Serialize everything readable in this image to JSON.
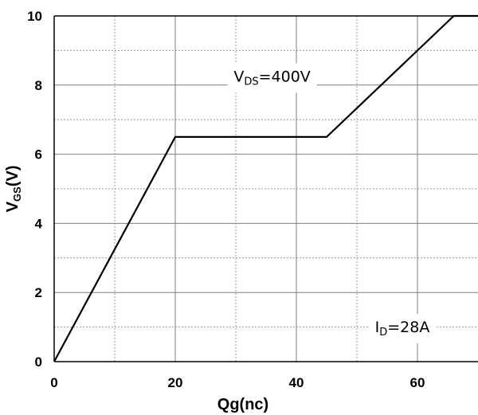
{
  "chart_data": {
    "type": "line",
    "xlabel": "Qg(nc)",
    "ylabel": {
      "main": "V",
      "sub": "GS",
      "suffix": "(V)"
    },
    "xlim": [
      0,
      70
    ],
    "ylim": [
      0,
      10
    ],
    "x_ticks": [
      0,
      20,
      40,
      60
    ],
    "y_ticks": [
      0,
      2,
      4,
      6,
      8,
      10
    ],
    "x_minor_grid": [
      10,
      30,
      50
    ],
    "y_minor_grid": [
      1,
      3,
      5,
      7,
      9
    ],
    "grid": true,
    "series": [
      {
        "x": [
          0,
          20,
          45,
          66,
          70
        ],
        "y": [
          0,
          6.5,
          6.5,
          10,
          10
        ]
      }
    ],
    "annotations": [
      {
        "main": "V",
        "sub": "DS",
        "suffix": "=400V",
        "x": 36,
        "y": 8.1
      },
      {
        "main": "I",
        "sub": "D",
        "suffix": "=28A",
        "x": 57.5,
        "y": 0.85
      }
    ]
  }
}
